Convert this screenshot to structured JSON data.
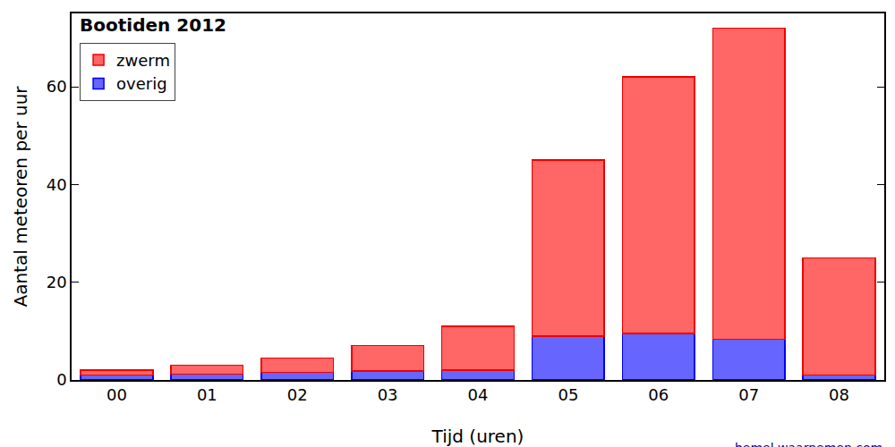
{
  "chart_data": {
    "type": "bar",
    "title": "Bootiden 2012",
    "x_label": "Tijd (uren)",
    "y_label": "Aantal meteoren per uur",
    "categories": [
      "00",
      "01",
      "02",
      "03",
      "04",
      "05",
      "06",
      "07",
      "08"
    ],
    "series": [
      {
        "name": "overig",
        "color": "#6666ff",
        "values": [
          1.0,
          1.2,
          1.6,
          1.8,
          2.0,
          9.0,
          9.5,
          8.3,
          1.0
        ]
      },
      {
        "name": "zwerm",
        "color": "#ff6666",
        "values": [
          1.0,
          1.8,
          2.9,
          5.2,
          9.0,
          36.0,
          52.5,
          63.7,
          24.0
        ]
      }
    ],
    "stacked": true,
    "ylim": [
      0,
      75
    ],
    "yticks": [
      0,
      20,
      40,
      60
    ],
    "grid": false,
    "legend": "upper left",
    "annotation": "hemel.waarnemen.com"
  }
}
